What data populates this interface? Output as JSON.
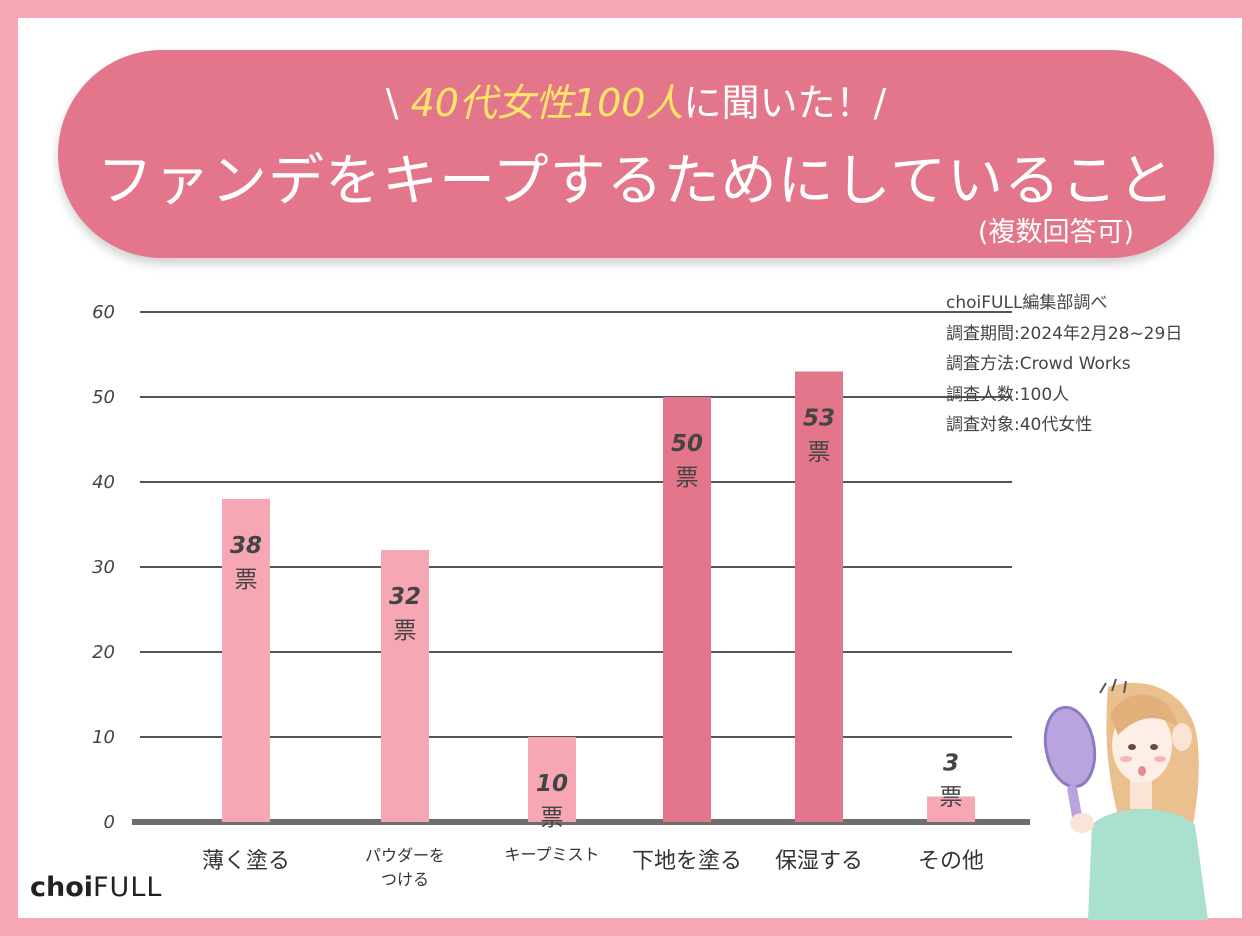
{
  "banner": {
    "sub_left": "\\ ",
    "sub_highlight_1": "40代女性100人",
    "sub_middle": "に聞いた！",
    "sub_right": "/",
    "title": "ファンデをキープするためにしていること",
    "note": "(複数回答可)"
  },
  "survey_info": [
    "choiFULL編集部調べ",
    "調査期間:2024年2月28~29日",
    "調査方法:Crowd Works",
    "調査人数:100人",
    "調査対象:40代女性"
  ],
  "brand": {
    "choi": "choi",
    "full": "FULL"
  },
  "colors": {
    "page_border": "#f7a7b4",
    "banner": "#e3768a",
    "bar_light": "#f7a7b4",
    "bar_dark": "#e3768a",
    "highlight": "#ffe46a"
  },
  "illustration": {
    "name": "woman-with-mirror-illustration"
  },
  "chart_data": {
    "type": "bar",
    "title": "ファンデをキープするためにしていること",
    "categories": [
      [
        "薄く塗る"
      ],
      [
        "パウダーを",
        "つける"
      ],
      [
        "キープミスト"
      ],
      [
        "下地を塗る"
      ],
      [
        "保湿する"
      ],
      [
        "その他"
      ]
    ],
    "values": [
      38,
      32,
      10,
      50,
      53,
      3
    ],
    "unit": "票",
    "highlight": [
      false,
      false,
      false,
      true,
      true,
      false
    ],
    "yticks": [
      0,
      10,
      20,
      30,
      40,
      50,
      60
    ],
    "ylim": [
      0,
      60
    ],
    "grid": true,
    "xlabel": "",
    "ylabel": ""
  }
}
